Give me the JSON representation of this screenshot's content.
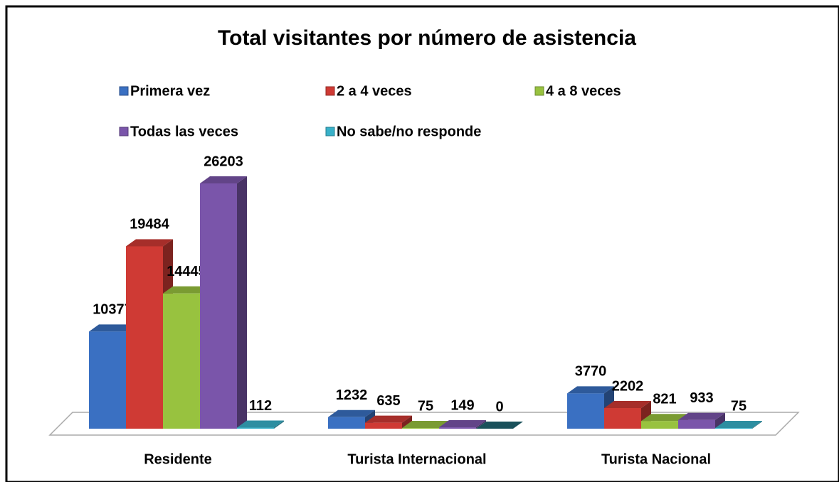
{
  "chart_data": {
    "type": "bar3d",
    "title": "Total visitantes por número de asistencia",
    "categories": [
      "Residente",
      "Turista Internacional",
      "Turista Nacional"
    ],
    "legend": "top",
    "series": [
      {
        "name": "Primera vez",
        "color": "#3a70c2",
        "values": [
          10377,
          1232,
          3770
        ]
      },
      {
        "name": "2 a 4 veces",
        "color": "#cf3a34",
        "values": [
          19484,
          635,
          2202
        ]
      },
      {
        "name": "4 a 8 veces",
        "color": "#98c23f",
        "values": [
          14445,
          75,
          821
        ]
      },
      {
        "name": "Todas las veces",
        "color": "#7a55aa",
        "values": [
          26203,
          149,
          933
        ]
      },
      {
        "name": "No sabe/no responde",
        "color": "#38b1c9",
        "values": [
          112,
          0,
          75
        ]
      }
    ]
  }
}
